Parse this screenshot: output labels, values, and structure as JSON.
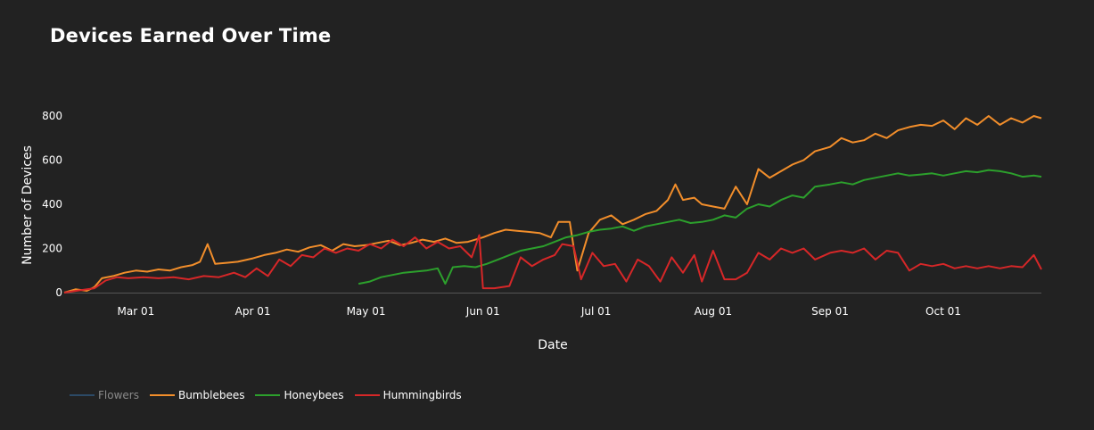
{
  "title": "Devices Earned Over Time",
  "chart_data": {
    "type": "line",
    "title": "Devices Earned Over Time",
    "xlabel": "Date",
    "ylabel": "Number of Devices",
    "xlim": [
      "2024-02-11",
      "2024-10-27"
    ],
    "ylim": [
      0,
      800
    ],
    "x_ticks": [
      {
        "label": "Mar 01",
        "date": "2024-03-01"
      },
      {
        "label": "Apr 01",
        "date": "2024-04-01"
      },
      {
        "label": "May 01",
        "date": "2024-05-01"
      },
      {
        "label": "Jun 01",
        "date": "2024-06-01"
      },
      {
        "label": "Jul 01",
        "date": "2024-07-01"
      },
      {
        "label": "Aug 01",
        "date": "2024-08-01"
      },
      {
        "label": "Sep 01",
        "date": "2024-09-01"
      },
      {
        "label": "Oct 01",
        "date": "2024-10-01"
      }
    ],
    "y_ticks": [
      0,
      200,
      400,
      600,
      800
    ],
    "grid": false,
    "legend_position": "bottom-left",
    "series": [
      {
        "name": "Flowers",
        "color": "#2c4a66",
        "legend_disabled": true,
        "points": []
      },
      {
        "name": "Bumblebees",
        "color": "#f28e2b",
        "points": [
          [
            "2024-02-11",
            0
          ],
          [
            "2024-02-14",
            15
          ],
          [
            "2024-02-17",
            8
          ],
          [
            "2024-02-19",
            25
          ],
          [
            "2024-02-21",
            65
          ],
          [
            "2024-02-24",
            75
          ],
          [
            "2024-02-27",
            90
          ],
          [
            "2024-03-01",
            100
          ],
          [
            "2024-03-04",
            95
          ],
          [
            "2024-03-07",
            105
          ],
          [
            "2024-03-10",
            100
          ],
          [
            "2024-03-13",
            115
          ],
          [
            "2024-03-16",
            125
          ],
          [
            "2024-03-18",
            140
          ],
          [
            "2024-03-20",
            220
          ],
          [
            "2024-03-22",
            130
          ],
          [
            "2024-03-25",
            135
          ],
          [
            "2024-03-28",
            140
          ],
          [
            "2024-04-01",
            155
          ],
          [
            "2024-04-04",
            170
          ],
          [
            "2024-04-07",
            180
          ],
          [
            "2024-04-10",
            195
          ],
          [
            "2024-04-13",
            185
          ],
          [
            "2024-04-16",
            205
          ],
          [
            "2024-04-19",
            215
          ],
          [
            "2024-04-22",
            190
          ],
          [
            "2024-04-25",
            220
          ],
          [
            "2024-04-28",
            210
          ],
          [
            "2024-05-01",
            215
          ],
          [
            "2024-05-04",
            225
          ],
          [
            "2024-05-07",
            235
          ],
          [
            "2024-05-10",
            215
          ],
          [
            "2024-05-13",
            225
          ],
          [
            "2024-05-16",
            240
          ],
          [
            "2024-05-19",
            230
          ],
          [
            "2024-05-22",
            245
          ],
          [
            "2024-05-25",
            225
          ],
          [
            "2024-05-28",
            230
          ],
          [
            "2024-06-01",
            250
          ],
          [
            "2024-06-04",
            270
          ],
          [
            "2024-06-07",
            285
          ],
          [
            "2024-06-10",
            280
          ],
          [
            "2024-06-13",
            275
          ],
          [
            "2024-06-16",
            270
          ],
          [
            "2024-06-19",
            250
          ],
          [
            "2024-06-21",
            320
          ],
          [
            "2024-06-24",
            320
          ],
          [
            "2024-06-26",
            100
          ],
          [
            "2024-06-29",
            270
          ],
          [
            "2024-07-02",
            330
          ],
          [
            "2024-07-05",
            350
          ],
          [
            "2024-07-08",
            310
          ],
          [
            "2024-07-11",
            330
          ],
          [
            "2024-07-14",
            355
          ],
          [
            "2024-07-17",
            370
          ],
          [
            "2024-07-20",
            420
          ],
          [
            "2024-07-22",
            490
          ],
          [
            "2024-07-24",
            420
          ],
          [
            "2024-07-27",
            430
          ],
          [
            "2024-07-29",
            400
          ],
          [
            "2024-08-01",
            390
          ],
          [
            "2024-08-04",
            380
          ],
          [
            "2024-08-07",
            480
          ],
          [
            "2024-08-10",
            400
          ],
          [
            "2024-08-13",
            560
          ],
          [
            "2024-08-16",
            520
          ],
          [
            "2024-08-19",
            550
          ],
          [
            "2024-08-22",
            580
          ],
          [
            "2024-08-25",
            600
          ],
          [
            "2024-08-28",
            640
          ],
          [
            "2024-09-01",
            660
          ],
          [
            "2024-09-04",
            700
          ],
          [
            "2024-09-07",
            680
          ],
          [
            "2024-09-10",
            690
          ],
          [
            "2024-09-13",
            720
          ],
          [
            "2024-09-16",
            700
          ],
          [
            "2024-09-19",
            735
          ],
          [
            "2024-09-22",
            750
          ],
          [
            "2024-09-25",
            760
          ],
          [
            "2024-09-28",
            755
          ],
          [
            "2024-10-01",
            780
          ],
          [
            "2024-10-04",
            740
          ],
          [
            "2024-10-07",
            790
          ],
          [
            "2024-10-10",
            760
          ],
          [
            "2024-10-13",
            800
          ],
          [
            "2024-10-16",
            760
          ],
          [
            "2024-10-19",
            790
          ],
          [
            "2024-10-22",
            770
          ],
          [
            "2024-10-25",
            800
          ],
          [
            "2024-10-27",
            790
          ]
        ]
      },
      {
        "name": "Honeybees",
        "color": "#2ca02c",
        "points": [
          [
            "2024-04-29",
            40
          ],
          [
            "2024-05-02",
            50
          ],
          [
            "2024-05-05",
            70
          ],
          [
            "2024-05-08",
            80
          ],
          [
            "2024-05-11",
            90
          ],
          [
            "2024-05-14",
            95
          ],
          [
            "2024-05-17",
            100
          ],
          [
            "2024-05-20",
            110
          ],
          [
            "2024-05-22",
            40
          ],
          [
            "2024-05-24",
            115
          ],
          [
            "2024-05-27",
            120
          ],
          [
            "2024-05-30",
            115
          ],
          [
            "2024-06-02",
            130
          ],
          [
            "2024-06-05",
            150
          ],
          [
            "2024-06-08",
            170
          ],
          [
            "2024-06-11",
            190
          ],
          [
            "2024-06-14",
            200
          ],
          [
            "2024-06-17",
            210
          ],
          [
            "2024-06-20",
            230
          ],
          [
            "2024-06-23",
            250
          ],
          [
            "2024-06-26",
            260
          ],
          [
            "2024-06-29",
            275
          ],
          [
            "2024-07-02",
            285
          ],
          [
            "2024-07-05",
            290
          ],
          [
            "2024-07-08",
            300
          ],
          [
            "2024-07-11",
            280
          ],
          [
            "2024-07-14",
            300
          ],
          [
            "2024-07-17",
            310
          ],
          [
            "2024-07-20",
            320
          ],
          [
            "2024-07-23",
            330
          ],
          [
            "2024-07-26",
            315
          ],
          [
            "2024-07-29",
            320
          ],
          [
            "2024-08-01",
            330
          ],
          [
            "2024-08-04",
            350
          ],
          [
            "2024-08-07",
            340
          ],
          [
            "2024-08-10",
            380
          ],
          [
            "2024-08-13",
            400
          ],
          [
            "2024-08-16",
            390
          ],
          [
            "2024-08-19",
            420
          ],
          [
            "2024-08-22",
            440
          ],
          [
            "2024-08-25",
            430
          ],
          [
            "2024-08-28",
            480
          ],
          [
            "2024-09-01",
            490
          ],
          [
            "2024-09-04",
            500
          ],
          [
            "2024-09-07",
            490
          ],
          [
            "2024-09-10",
            510
          ],
          [
            "2024-09-13",
            520
          ],
          [
            "2024-09-16",
            530
          ],
          [
            "2024-09-19",
            540
          ],
          [
            "2024-09-22",
            530
          ],
          [
            "2024-09-25",
            535
          ],
          [
            "2024-09-28",
            540
          ],
          [
            "2024-10-01",
            530
          ],
          [
            "2024-10-04",
            540
          ],
          [
            "2024-10-07",
            550
          ],
          [
            "2024-10-10",
            545
          ],
          [
            "2024-10-13",
            555
          ],
          [
            "2024-10-16",
            550
          ],
          [
            "2024-10-19",
            540
          ],
          [
            "2024-10-22",
            525
          ],
          [
            "2024-10-25",
            530
          ],
          [
            "2024-10-27",
            525
          ]
        ]
      },
      {
        "name": "Hummingbirds",
        "color": "#d62728",
        "points": [
          [
            "2024-02-11",
            0
          ],
          [
            "2024-02-15",
            10
          ],
          [
            "2024-02-19",
            20
          ],
          [
            "2024-02-22",
            55
          ],
          [
            "2024-02-25",
            70
          ],
          [
            "2024-02-28",
            65
          ],
          [
            "2024-03-03",
            70
          ],
          [
            "2024-03-07",
            65
          ],
          [
            "2024-03-11",
            70
          ],
          [
            "2024-03-15",
            60
          ],
          [
            "2024-03-19",
            75
          ],
          [
            "2024-03-23",
            70
          ],
          [
            "2024-03-27",
            90
          ],
          [
            "2024-03-30",
            70
          ],
          [
            "2024-04-02",
            110
          ],
          [
            "2024-04-05",
            75
          ],
          [
            "2024-04-08",
            150
          ],
          [
            "2024-04-11",
            120
          ],
          [
            "2024-04-14",
            170
          ],
          [
            "2024-04-17",
            160
          ],
          [
            "2024-04-20",
            200
          ],
          [
            "2024-04-23",
            180
          ],
          [
            "2024-04-26",
            200
          ],
          [
            "2024-04-29",
            190
          ],
          [
            "2024-05-02",
            220
          ],
          [
            "2024-05-05",
            200
          ],
          [
            "2024-05-08",
            240
          ],
          [
            "2024-05-11",
            210
          ],
          [
            "2024-05-14",
            250
          ],
          [
            "2024-05-17",
            200
          ],
          [
            "2024-05-20",
            230
          ],
          [
            "2024-05-23",
            200
          ],
          [
            "2024-05-26",
            210
          ],
          [
            "2024-05-29",
            160
          ],
          [
            "2024-05-31",
            260
          ],
          [
            "2024-06-01",
            20
          ],
          [
            "2024-06-04",
            20
          ],
          [
            "2024-06-08",
            30
          ],
          [
            "2024-06-11",
            160
          ],
          [
            "2024-06-14",
            120
          ],
          [
            "2024-06-17",
            150
          ],
          [
            "2024-06-20",
            170
          ],
          [
            "2024-06-22",
            220
          ],
          [
            "2024-06-25",
            210
          ],
          [
            "2024-06-27",
            60
          ],
          [
            "2024-06-30",
            180
          ],
          [
            "2024-07-03",
            120
          ],
          [
            "2024-07-06",
            130
          ],
          [
            "2024-07-09",
            50
          ],
          [
            "2024-07-12",
            150
          ],
          [
            "2024-07-15",
            120
          ],
          [
            "2024-07-18",
            50
          ],
          [
            "2024-07-21",
            160
          ],
          [
            "2024-07-24",
            90
          ],
          [
            "2024-07-27",
            170
          ],
          [
            "2024-07-29",
            50
          ],
          [
            "2024-08-01",
            190
          ],
          [
            "2024-08-04",
            60
          ],
          [
            "2024-08-07",
            60
          ],
          [
            "2024-08-10",
            90
          ],
          [
            "2024-08-13",
            180
          ],
          [
            "2024-08-16",
            150
          ],
          [
            "2024-08-19",
            200
          ],
          [
            "2024-08-22",
            180
          ],
          [
            "2024-08-25",
            200
          ],
          [
            "2024-08-28",
            150
          ],
          [
            "2024-09-01",
            180
          ],
          [
            "2024-09-04",
            190
          ],
          [
            "2024-09-07",
            180
          ],
          [
            "2024-09-10",
            200
          ],
          [
            "2024-09-13",
            150
          ],
          [
            "2024-09-16",
            190
          ],
          [
            "2024-09-19",
            180
          ],
          [
            "2024-09-22",
            100
          ],
          [
            "2024-09-25",
            130
          ],
          [
            "2024-09-28",
            120
          ],
          [
            "2024-10-01",
            130
          ],
          [
            "2024-10-04",
            110
          ],
          [
            "2024-10-07",
            120
          ],
          [
            "2024-10-10",
            110
          ],
          [
            "2024-10-13",
            120
          ],
          [
            "2024-10-16",
            110
          ],
          [
            "2024-10-19",
            120
          ],
          [
            "2024-10-22",
            115
          ],
          [
            "2024-10-25",
            170
          ],
          [
            "2024-10-27",
            105
          ]
        ]
      }
    ]
  },
  "legend": {
    "items": [
      {
        "label": "Flowers",
        "color": "#2c4a66",
        "text_color": "#8a8a8a"
      },
      {
        "label": "Bumblebees",
        "color": "#f28e2b",
        "text_color": "#ffffff"
      },
      {
        "label": "Honeybees",
        "color": "#2ca02c",
        "text_color": "#ffffff"
      },
      {
        "label": "Hummingbirds",
        "color": "#d62728",
        "text_color": "#ffffff"
      }
    ]
  }
}
